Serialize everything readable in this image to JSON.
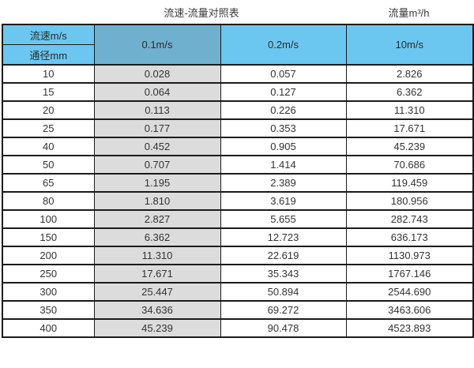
{
  "page": {
    "title": "流速-流量对照表",
    "unit_label": "流量m³/h"
  },
  "table": {
    "corner_top_label": "流速m/s",
    "corner_bottom_label": "通径mm",
    "velocity_columns": [
      "0.1m/s",
      "0.2m/s",
      "10m/s"
    ],
    "rows": [
      {
        "diameter": "10",
        "values": [
          "0.028",
          "0.057",
          "2.826"
        ]
      },
      {
        "diameter": "15",
        "values": [
          "0.064",
          "0.127",
          "6.362"
        ]
      },
      {
        "diameter": "20",
        "values": [
          "0.113",
          "0.226",
          "11.310"
        ]
      },
      {
        "diameter": "25",
        "values": [
          "0.177",
          "0.353",
          "17.671"
        ]
      },
      {
        "diameter": "40",
        "values": [
          "0.452",
          "0.905",
          "45.239"
        ]
      },
      {
        "diameter": "50",
        "values": [
          "0.707",
          "1.414",
          "70.686"
        ]
      },
      {
        "diameter": "65",
        "values": [
          "1.195",
          "2.389",
          "119.459"
        ]
      },
      {
        "diameter": "80",
        "values": [
          "1.810",
          "3.619",
          "180.956"
        ]
      },
      {
        "diameter": "100",
        "values": [
          "2.827",
          "5.655",
          "282.743"
        ]
      },
      {
        "diameter": "150",
        "values": [
          "6.362",
          "12.723",
          "636.173"
        ]
      },
      {
        "diameter": "200",
        "values": [
          "11.310",
          "22.619",
          "1130.973"
        ]
      },
      {
        "diameter": "250",
        "values": [
          "17.671",
          "35.343",
          "1767.146"
        ]
      },
      {
        "diameter": "300",
        "values": [
          "25.447",
          "50.894",
          "2544.690"
        ]
      },
      {
        "diameter": "350",
        "values": [
          "34.636",
          "69.272",
          "3463.606"
        ]
      },
      {
        "diameter": "400",
        "values": [
          "45.239",
          "90.478",
          "4523.893"
        ]
      }
    ]
  },
  "colors": {
    "header_blue": "#6cc7f0",
    "header_dark_blue": "#6fb0cf",
    "gray_column": "#dcdcdc",
    "border": "#1b1b1b",
    "text": "#333333"
  },
  "chart_data": {
    "type": "table",
    "title": "流速-流量对照表",
    "unit_label": "流量m³/h",
    "corner_labels": {
      "top": "流速m/s",
      "bottom": "通径mm"
    },
    "columns": [
      "0.1m/s",
      "0.2m/s",
      "10m/s"
    ],
    "diameters_mm": [
      10,
      15,
      20,
      25,
      40,
      50,
      65,
      80,
      100,
      150,
      200,
      250,
      300,
      350,
      400
    ],
    "series": [
      {
        "name": "0.1m/s",
        "values": [
          0.028,
          0.064,
          0.113,
          0.177,
          0.452,
          0.707,
          1.195,
          1.81,
          2.827,
          6.362,
          11.31,
          17.671,
          25.447,
          34.636,
          45.239
        ]
      },
      {
        "name": "0.2m/s",
        "values": [
          0.057,
          0.127,
          0.226,
          0.353,
          0.905,
          1.414,
          2.389,
          3.619,
          5.655,
          12.723,
          22.619,
          35.343,
          50.894,
          69.272,
          90.478
        ]
      },
      {
        "name": "10m/s",
        "values": [
          2.826,
          6.362,
          11.31,
          17.671,
          45.239,
          70.686,
          119.459,
          180.956,
          282.743,
          636.173,
          1130.973,
          1767.146,
          2544.69,
          3463.606,
          4523.893
        ]
      }
    ]
  }
}
